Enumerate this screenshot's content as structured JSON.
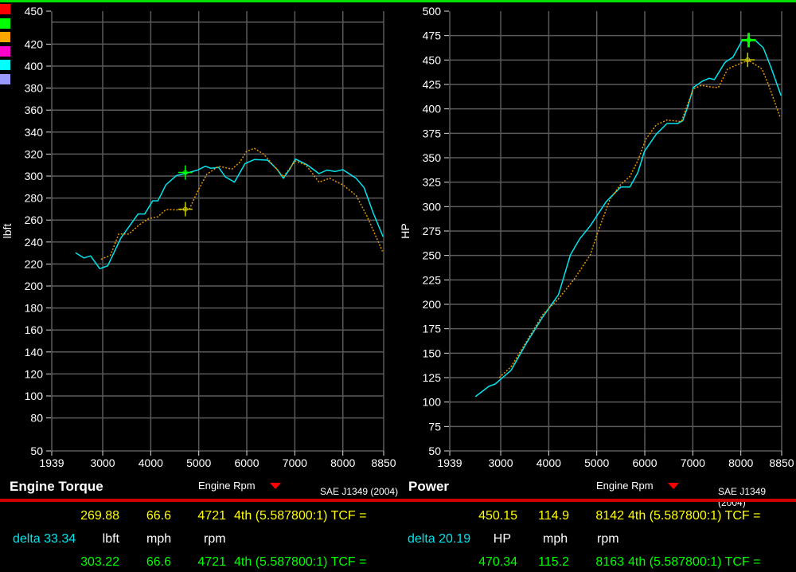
{
  "legend_swatches": [
    "#ff0000",
    "#00ff00",
    "#ffa500",
    "#ff00cc",
    "#00ffff",
    "#9999ff"
  ],
  "colors": {
    "top_bar": "#00e000",
    "run1": "#00e5ee",
    "run2": "#e69500",
    "cursor_run1": "#00ff00",
    "cursor_run2": "#cccc00",
    "separator": "#d00000"
  },
  "chart_data": [
    {
      "type": "line",
      "title": "Engine Torque",
      "xlabel": "Engine Rpm",
      "ylabel": "lbft",
      "standard": "SAE J1349 (2004)",
      "xlim": [
        1939,
        8850
      ],
      "ylim": [
        50,
        450
      ],
      "x_ticks": [
        1939,
        3000,
        4000,
        5000,
        6000,
        7000,
        8000,
        8850
      ],
      "y_ticks": [
        450,
        420,
        400,
        380,
        360,
        340,
        320,
        300,
        280,
        260,
        240,
        220,
        200,
        180,
        160,
        140,
        120,
        100,
        80,
        50
      ],
      "grid": true,
      "series": [
        {
          "points": [
            [
              2434,
              230.3
            ],
            [
              2609,
              225.5
            ],
            [
              2748,
              227.4
            ],
            [
              2939,
              215.8
            ],
            [
              3104,
              218.3
            ],
            [
              3380,
              243.7
            ],
            [
              3738,
              265.5
            ],
            [
              3875,
              265.5
            ],
            [
              4040,
              277.5
            ],
            [
              4150,
              277.5
            ],
            [
              4315,
              292
            ],
            [
              4535,
              300.5
            ],
            [
              4728,
              302.5
            ],
            [
              4975,
              305.4
            ],
            [
              5140,
              309
            ],
            [
              5250,
              307
            ],
            [
              5415,
              307.8
            ],
            [
              5553,
              299.3
            ],
            [
              5745,
              294.5
            ],
            [
              5965,
              311.4
            ],
            [
              6157,
              315
            ],
            [
              6432,
              314.5
            ],
            [
              6625,
              306.5
            ],
            [
              6762,
              298
            ],
            [
              6899,
              306.5
            ],
            [
              7010,
              315.5
            ],
            [
              7257,
              310.2
            ],
            [
              7505,
              302.2
            ],
            [
              7670,
              305.4
            ],
            [
              7835,
              304.1
            ],
            [
              8000,
              305.8
            ],
            [
              8276,
              298
            ],
            [
              8441,
              289.6
            ],
            [
              8632,
              266.6
            ],
            [
              8837,
              244.9
            ]
          ]
        },
        {
          "points": [
            [
              2967,
              224.3
            ],
            [
              3160,
              228
            ],
            [
              3335,
              247.3
            ],
            [
              3545,
              247.3
            ],
            [
              3764,
              255.7
            ],
            [
              3957,
              261.3
            ],
            [
              4150,
              263
            ],
            [
              4315,
              269.5
            ],
            [
              4589,
              269.1
            ],
            [
              4810,
              270.3
            ],
            [
              4975,
              286
            ],
            [
              5167,
              301.7
            ],
            [
              5415,
              309
            ],
            [
              5690,
              306.3
            ],
            [
              5855,
              312.6
            ],
            [
              5992,
              322.3
            ],
            [
              6157,
              325.2
            ],
            [
              6350,
              319.9
            ],
            [
              6569,
              309
            ],
            [
              6762,
              299.3
            ],
            [
              7010,
              313.8
            ],
            [
              7230,
              310.2
            ],
            [
              7505,
              294.5
            ],
            [
              7724,
              298
            ],
            [
              8000,
              292
            ],
            [
              8276,
              282.4
            ],
            [
              8495,
              264.2
            ],
            [
              8825,
              231.6
            ]
          ]
        }
      ],
      "cursors": [
        {
          "rpm": 4721,
          "value": 269.88
        },
        {
          "rpm": 4721,
          "value": 303.22
        }
      ]
    },
    {
      "type": "line",
      "title": "Power",
      "xlabel": "Engine Rpm",
      "ylabel": "HP",
      "standard": "SAE J1349 (2004)",
      "xlim": [
        1939,
        8850
      ],
      "ylim": [
        50,
        500
      ],
      "x_ticks": [
        1939,
        3000,
        4000,
        5000,
        6000,
        7000,
        8000,
        8850
      ],
      "y_ticks": [
        500,
        475,
        450,
        425,
        400,
        375,
        350,
        325,
        300,
        275,
        250,
        225,
        200,
        175,
        150,
        125,
        100,
        75,
        50
      ],
      "grid": true,
      "series": [
        {
          "points": [
            [
              2472,
              105.5
            ],
            [
              2752,
              116
            ],
            [
              2885,
              118.5
            ],
            [
              3215,
              132.4
            ],
            [
              3545,
              161
            ],
            [
              3875,
              187
            ],
            [
              4205,
              210
            ],
            [
              4452,
              250.6
            ],
            [
              4645,
              267
            ],
            [
              4865,
              280.5
            ],
            [
              5195,
              305
            ],
            [
              5497,
              320
            ],
            [
              5690,
              320
            ],
            [
              5855,
              334.8
            ],
            [
              5992,
              356.5
            ],
            [
              6240,
              374.2
            ],
            [
              6460,
              385
            ],
            [
              6680,
              385
            ],
            [
              6790,
              387.8
            ],
            [
              6899,
              402.8
            ],
            [
              7010,
              421.8
            ],
            [
              7203,
              428.5
            ],
            [
              7340,
              431.3
            ],
            [
              7450,
              430
            ],
            [
              7670,
              447.6
            ],
            [
              7835,
              453
            ],
            [
              8028,
              470.1
            ],
            [
              8302,
              470.1
            ],
            [
              8467,
              462.5
            ],
            [
              8632,
              442
            ],
            [
              8837,
              413.6
            ]
          ]
        },
        {
          "points": [
            [
              2970,
              125
            ],
            [
              3215,
              136
            ],
            [
              3545,
              162.6
            ],
            [
              3875,
              189.5
            ],
            [
              4205,
              205.8
            ],
            [
              4535,
              226
            ],
            [
              4865,
              250.6
            ],
            [
              5030,
              275
            ],
            [
              5277,
              307.6
            ],
            [
              5497,
              322.6
            ],
            [
              5690,
              330.8
            ],
            [
              5855,
              347
            ],
            [
              6020,
              368.8
            ],
            [
              6240,
              383.7
            ],
            [
              6460,
              388.6
            ],
            [
              6762,
              387
            ],
            [
              6899,
              405.5
            ],
            [
              7010,
              420.4
            ],
            [
              7175,
              424
            ],
            [
              7395,
              422.3
            ],
            [
              7533,
              421.8
            ],
            [
              7725,
              440.8
            ],
            [
              8000,
              446.8
            ],
            [
              8165,
              449.5
            ],
            [
              8440,
              440.8
            ],
            [
              8577,
              424.5
            ],
            [
              8825,
              390.5
            ]
          ]
        }
      ],
      "cursors": [
        {
          "rpm": 8142,
          "value": 450.15
        },
        {
          "rpm": 8163,
          "value": 470.34
        }
      ]
    }
  ],
  "readout": {
    "torque": {
      "run2": {
        "value": "269.88",
        "speed": "66.6",
        "rpm": "4721",
        "gear": "4th (5.587800:1) TCF ="
      },
      "delta": "delta 33.34",
      "units": {
        "value": "lbft",
        "speed": "mph",
        "rpm": "rpm"
      },
      "run1": {
        "value": "303.22",
        "speed": "66.6",
        "rpm": "4721",
        "gear": "4th (5.587800:1) TCF ="
      }
    },
    "power": {
      "run2": {
        "value": "450.15",
        "speed": "114.9",
        "rpm": "8142",
        "gear": "4th (5.587800:1) TCF ="
      },
      "delta": "delta 20.19",
      "units": {
        "value": "HP",
        "speed": "mph",
        "rpm": "rpm"
      },
      "run1": {
        "value": "470.34",
        "speed": "115.2",
        "rpm": "8163",
        "gear": "4th (5.587800:1) TCF ="
      }
    }
  }
}
